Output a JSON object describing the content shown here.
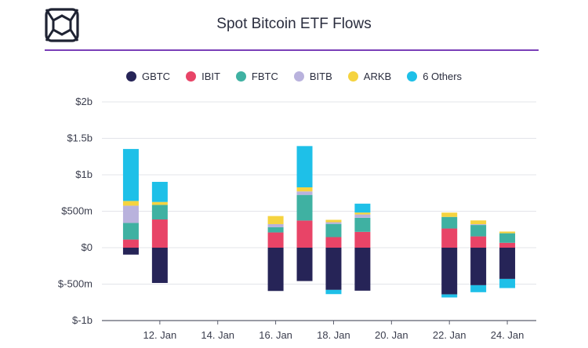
{
  "header": {
    "title": "Spot Bitcoin ETF Flows"
  },
  "chart_data": {
    "type": "bar",
    "stacked": true,
    "title": "Spot Bitcoin ETF Flows",
    "xlabel": "",
    "ylabel": "",
    "ylim": [
      -1000,
      2000
    ],
    "y_ticks": [
      2000,
      1500,
      1000,
      500,
      0,
      -500,
      -1000
    ],
    "y_tick_labels": [
      "$2b",
      "$1.5b",
      "$1b",
      "$500m",
      "$0",
      "$-500m",
      "$-1b"
    ],
    "x_tick_labels": [
      "12. Jan",
      "14. Jan",
      "16. Jan",
      "18. Jan",
      "20. Jan",
      "22. Jan",
      "24. Jan"
    ],
    "x_tick_dates": [
      "2024-01-12",
      "2024-01-14",
      "2024-01-16",
      "2024-01-18",
      "2024-01-20",
      "2024-01-22",
      "2024-01-24"
    ],
    "categories": [
      "2024-01-11",
      "2024-01-12",
      "2024-01-16",
      "2024-01-17",
      "2024-01-18",
      "2024-01-19",
      "2024-01-22",
      "2024-01-23",
      "2024-01-24"
    ],
    "grid": true,
    "legend_position": "top-center",
    "series": [
      {
        "name": "GBTC",
        "color": "#262457",
        "values": [
          -95,
          -484,
          -594,
          -458,
          -579,
          -590,
          -641,
          -515,
          -429
        ]
      },
      {
        "name": "IBIT",
        "color": "#e84467",
        "values": [
          112,
          387,
          209,
          372,
          145,
          217,
          263,
          155,
          67
        ]
      },
      {
        "name": "FBTC",
        "color": "#3fb1a2",
        "values": [
          227,
          200,
          71,
          352,
          181,
          193,
          159,
          156,
          131
        ]
      },
      {
        "name": "BITB",
        "color": "#b9b2dd",
        "values": [
          237,
          0,
          43,
          48,
          23,
          46,
          0,
          11,
          0
        ]
      },
      {
        "name": "ARKB",
        "color": "#f5d33f",
        "values": [
          65,
          40,
          111,
          56,
          33,
          26,
          59,
          52,
          23
        ]
      },
      {
        "name": "6 Others",
        "color": "#1ec0e8",
        "values": [
          713,
          276,
          0,
          566,
          -58,
          122,
          -42,
          -96,
          -125
        ]
      }
    ]
  }
}
